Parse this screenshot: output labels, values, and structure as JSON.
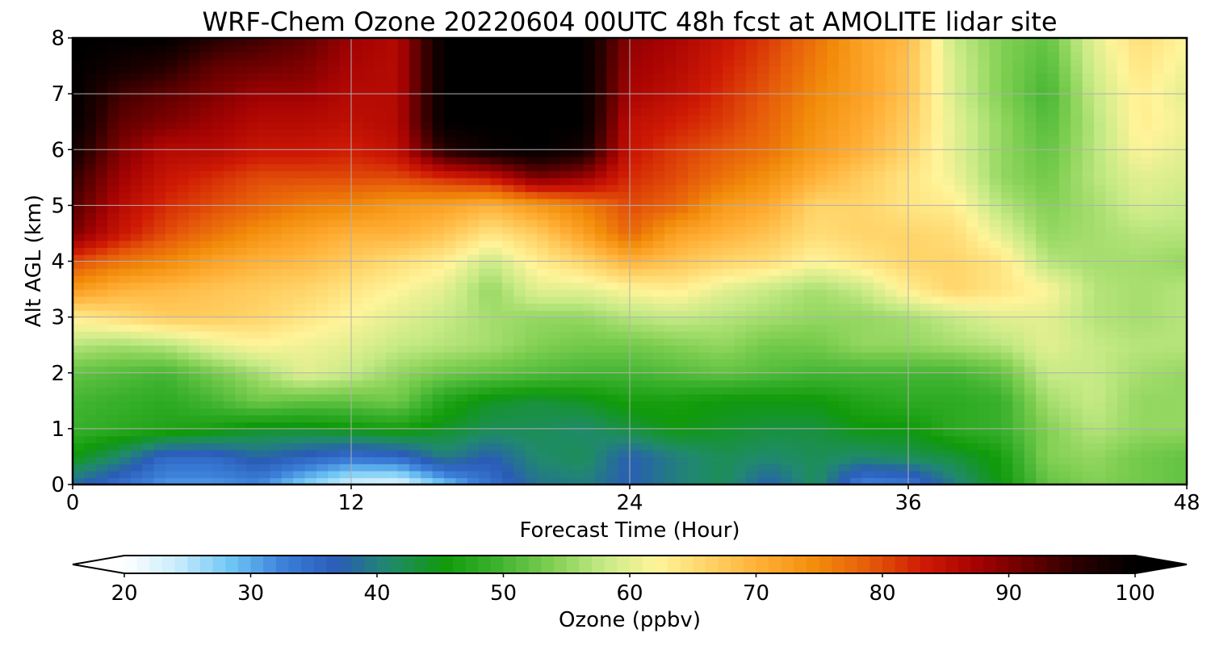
{
  "chart_data": {
    "type": "heatmap",
    "title": "WRF-Chem Ozone  20220604 00UTC 48h fcst at AMOLITE lidar site",
    "xlabel": "Forecast Time (Hour)",
    "ylabel": "Alt AGL (km)",
    "xlim": [
      0,
      48
    ],
    "ylim": [
      0,
      8
    ],
    "x_ticks": [
      "0",
      "12",
      "24",
      "36",
      "48"
    ],
    "y_ticks": [
      "0",
      "1",
      "2",
      "3",
      "4",
      "5",
      "6",
      "7",
      "8"
    ],
    "grid": true,
    "colorbar": {
      "label": "Ozone  (ppbv)",
      "range": [
        20,
        100
      ],
      "ticks": [
        "20",
        "30",
        "40",
        "50",
        "60",
        "70",
        "80",
        "90",
        "100"
      ],
      "extend": "both",
      "colors": [
        "#ffffff",
        "#c8ecfc",
        "#6ec6f5",
        "#3b7fd9",
        "#2a5cb7",
        "#208a6b",
        "#109a0a",
        "#3db22f",
        "#7dce50",
        "#c6ea86",
        "#fff49a",
        "#ffd266",
        "#ffad33",
        "#f28c0a",
        "#e65b0a",
        "#cf1a04",
        "#a70303",
        "#660000",
        "#260000",
        "#000000"
      ]
    },
    "x_hours": [
      0,
      2,
      4,
      6,
      8,
      10,
      12,
      14,
      16,
      18,
      20,
      22,
      24,
      26,
      28,
      30,
      32,
      34,
      36,
      38,
      40,
      42,
      44,
      46,
      48
    ],
    "z_km": [
      0,
      0.5,
      1,
      1.5,
      2,
      2.5,
      3,
      3.5,
      4,
      4.5,
      5,
      5.5,
      6,
      6.5,
      7,
      7.5,
      8
    ],
    "ozone_ppbv": [
      [
        38,
        34,
        31,
        31,
        32,
        27,
        23,
        22,
        28,
        34,
        39,
        40,
        37,
        40,
        42,
        37,
        42,
        32,
        33,
        40,
        45,
        52,
        54,
        53,
        52
      ],
      [
        45,
        41,
        35,
        35,
        38,
        36,
        34,
        35,
        40,
        37,
        41,
        42,
        37,
        40,
        42,
        41,
        42,
        41,
        42,
        43,
        46,
        54,
        55,
        53,
        52
      ],
      [
        49,
        48,
        47,
        46,
        44,
        44,
        45,
        46,
        44,
        42,
        42,
        41,
        43,
        45,
        44,
        43,
        43,
        45,
        45,
        48,
        49,
        54,
        57,
        55,
        55
      ],
      [
        50,
        49,
        48,
        50,
        53,
        52,
        52,
        53,
        47,
        44,
        43,
        44,
        46,
        46,
        45,
        45,
        45,
        47,
        48,
        48,
        49,
        56,
        58,
        55,
        55
      ],
      [
        52,
        51,
        50,
        53,
        56,
        60,
        58,
        55,
        53,
        52,
        51,
        50,
        50,
        51,
        52,
        51,
        50,
        50,
        50,
        50,
        52,
        58,
        58,
        56,
        55
      ],
      [
        57,
        56,
        57,
        60,
        62,
        61,
        60,
        58,
        57,
        56,
        54,
        53,
        53,
        54,
        55,
        53,
        53,
        55,
        55,
        56,
        57,
        60,
        58,
        57,
        57
      ],
      [
        63,
        65,
        67,
        67,
        66,
        64,
        62,
        60,
        58,
        56,
        55,
        55,
        57,
        58,
        57,
        56,
        55,
        55,
        56,
        58,
        60,
        60,
        57,
        56,
        57
      ],
      [
        73,
        70,
        69,
        68,
        67,
        66,
        64,
        62,
        60,
        55,
        60,
        60,
        62,
        63,
        60,
        58,
        56,
        58,
        63,
        66,
        64,
        62,
        57,
        56,
        57
      ],
      [
        80,
        77,
        75,
        72,
        70,
        69,
        67,
        65,
        63,
        58,
        63,
        66,
        70,
        68,
        66,
        65,
        62,
        64,
        66,
        66,
        64,
        57,
        56,
        56,
        55
      ],
      [
        90,
        84,
        80,
        77,
        74,
        72,
        70,
        70,
        68,
        64,
        67,
        72,
        78,
        72,
        70,
        68,
        65,
        66,
        66,
        65,
        60,
        55,
        56,
        57,
        57
      ],
      [
        93,
        86,
        82,
        80,
        78,
        76,
        75,
        73,
        72,
        70,
        73,
        76,
        80,
        78,
        73,
        71,
        66,
        66,
        64,
        63,
        57,
        54,
        56,
        59,
        58
      ],
      [
        95,
        88,
        84,
        82,
        80,
        80,
        80,
        80,
        82,
        84,
        90,
        88,
        82,
        80,
        77,
        74,
        70,
        67,
        64,
        61,
        55,
        53,
        57,
        60,
        59
      ],
      [
        98,
        90,
        86,
        86,
        84,
        84,
        83,
        85,
        96,
        99,
        100,
        98,
        84,
        81,
        79,
        77,
        73,
        70,
        66,
        60,
        55,
        52,
        57,
        62,
        60
      ],
      [
        100,
        92,
        90,
        88,
        86,
        86,
        85,
        86,
        100,
        100,
        100,
        100,
        85,
        83,
        81,
        78,
        74,
        71,
        67,
        60,
        55,
        51,
        57,
        63,
        61
      ],
      [
        100,
        94,
        92,
        90,
        88,
        88,
        86,
        86,
        100,
        100,
        100,
        100,
        87,
        85,
        82,
        79,
        75,
        72,
        68,
        59,
        54,
        50,
        58,
        63,
        60
      ],
      [
        100,
        98,
        96,
        92,
        91,
        90,
        87,
        86,
        100,
        100,
        100,
        100,
        88,
        86,
        83,
        80,
        76,
        72,
        68,
        59,
        54,
        51,
        59,
        64,
        61
      ],
      [
        100,
        100,
        100,
        96,
        94,
        92,
        88,
        86,
        100,
        100,
        100,
        100,
        89,
        87,
        84,
        81,
        77,
        72,
        69,
        58,
        54,
        52,
        60,
        65,
        62
      ]
    ]
  }
}
